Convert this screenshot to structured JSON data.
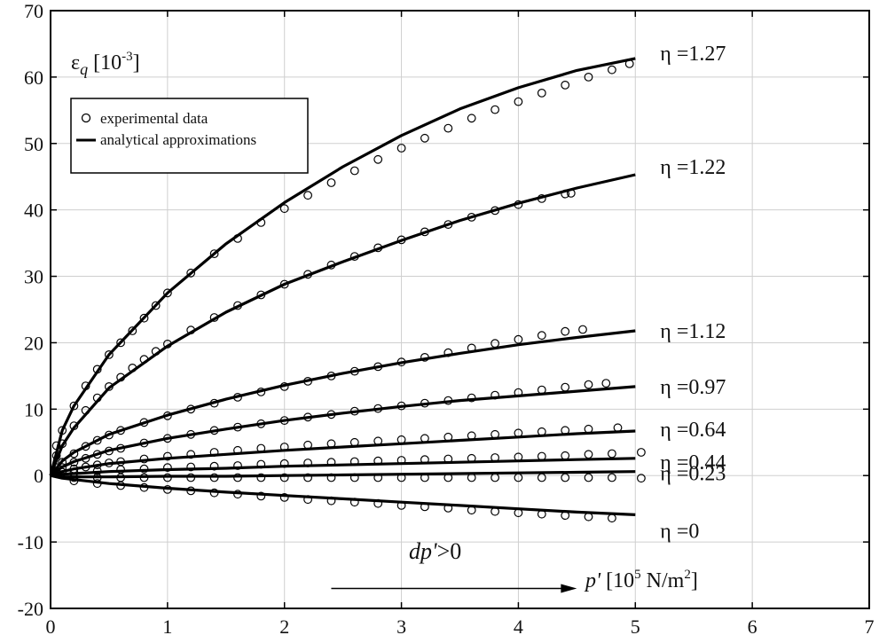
{
  "chart_data": {
    "type": "scatter",
    "title": "",
    "ylabel_parts": {
      "base": "ε",
      "sub": "q",
      "bracket_open": " [10",
      "sup": "-3",
      "bracket_close": "]"
    },
    "xlabel_parts": {
      "var": "p'",
      "bracket_open": " [10",
      "sup1": "5",
      "middle": " N/m",
      "sup2": "2",
      "bracket_close": "]"
    },
    "xlim": [
      0,
      7
    ],
    "ylim": [
      -20,
      70
    ],
    "xticks": [
      0,
      1,
      2,
      3,
      4,
      5,
      6,
      7
    ],
    "yticks": [
      -20,
      -10,
      0,
      10,
      20,
      30,
      40,
      50,
      60,
      70
    ],
    "grid": true,
    "legend": {
      "position": "upper-left",
      "entries": [
        {
          "marker": "circle",
          "label": "experimental data"
        },
        {
          "marker": "line",
          "label": "analytical approximations"
        }
      ]
    },
    "annotation": {
      "text_var": "dp'",
      "text_rest": ">0",
      "arrow_from_x": 2.4,
      "arrow_to_x": 4.5,
      "arrow_y": -17
    },
    "series": [
      {
        "label": "η =1.27",
        "approx": {
          "x": [
            0,
            0.1,
            0.2,
            0.5,
            1,
            1.5,
            2,
            2.5,
            3,
            3.5,
            4,
            4.5,
            5
          ],
          "y": [
            0,
            6.8,
            10.5,
            18.2,
            27.5,
            34.9,
            41.1,
            46.5,
            51.2,
            55.2,
            58.4,
            61.0,
            62.8
          ]
        },
        "experimental": {
          "x": [
            0.05,
            0.1,
            0.2,
            0.3,
            0.4,
            0.5,
            0.6,
            0.7,
            0.8,
            0.9,
            1,
            1.2,
            1.4,
            1.6,
            1.8,
            2,
            2.2,
            2.4,
            2.6,
            2.8,
            3,
            3.2,
            3.4,
            3.6,
            3.8,
            4,
            4.2,
            4.4,
            4.6,
            4.8,
            4.95
          ],
          "y": [
            4.5,
            6.8,
            10.5,
            13.5,
            16,
            18.2,
            20,
            21.8,
            23.7,
            25.6,
            27.5,
            30.5,
            33.4,
            35.7,
            38.1,
            40.2,
            42.2,
            44.1,
            45.9,
            47.6,
            49.3,
            50.8,
            52.3,
            53.8,
            55.1,
            56.3,
            57.6,
            58.8,
            60,
            61.1,
            62
          ]
        }
      },
      {
        "label": "η =1.22",
        "approx": {
          "x": [
            0,
            0.1,
            0.2,
            0.5,
            1,
            1.5,
            2,
            2.5,
            3,
            3.5,
            4,
            4.5,
            5
          ],
          "y": [
            0,
            4.5,
            7.2,
            13.2,
            19.5,
            24.6,
            28.8,
            32.2,
            35.4,
            38.4,
            41.0,
            43.3,
            45.3
          ]
        },
        "experimental": {
          "x": [
            0.05,
            0.1,
            0.2,
            0.3,
            0.4,
            0.5,
            0.6,
            0.7,
            0.8,
            0.9,
            1,
            1.2,
            1.4,
            1.6,
            1.8,
            2,
            2.2,
            2.4,
            2.6,
            2.8,
            3,
            3.2,
            3.4,
            3.6,
            3.8,
            4,
            4.2,
            4.4,
            4.45
          ],
          "y": [
            3,
            4.8,
            7.5,
            9.8,
            11.7,
            13.4,
            14.8,
            16.2,
            17.5,
            18.7,
            19.8,
            21.9,
            23.8,
            25.6,
            27.2,
            28.8,
            30.3,
            31.7,
            33,
            34.3,
            35.5,
            36.7,
            37.8,
            38.9,
            39.9,
            40.8,
            41.7,
            42.4,
            42.5
          ]
        }
      },
      {
        "label": "η =1.12",
        "approx": {
          "x": [
            0,
            0.1,
            0.2,
            0.5,
            1,
            1.5,
            2,
            2.5,
            3,
            3.5,
            4,
            4.5,
            5
          ],
          "y": [
            0,
            2.2,
            3.5,
            6.2,
            9.1,
            11.5,
            13.6,
            15.4,
            17.0,
            18.4,
            19.7,
            20.8,
            21.8
          ]
        },
        "experimental": {
          "x": [
            0.05,
            0.1,
            0.2,
            0.3,
            0.4,
            0.5,
            0.6,
            0.8,
            1,
            1.2,
            1.4,
            1.6,
            1.8,
            2,
            2.2,
            2.4,
            2.6,
            2.8,
            3,
            3.2,
            3.4,
            3.6,
            3.8,
            4,
            4.2,
            4.4,
            4.55
          ],
          "y": [
            1.2,
            2,
            3.3,
            4.4,
            5.3,
            6.1,
            6.8,
            8,
            9,
            10,
            10.9,
            11.8,
            12.6,
            13.4,
            14.2,
            15,
            15.7,
            16.4,
            17.1,
            17.8,
            18.5,
            19.2,
            19.9,
            20.5,
            21.1,
            21.7,
            22
          ]
        }
      },
      {
        "label": "η =0.97",
        "approx": {
          "x": [
            0,
            0.1,
            0.2,
            0.5,
            1,
            1.5,
            2,
            2.5,
            3,
            3.5,
            4,
            4.5,
            5
          ],
          "y": [
            0,
            1.3,
            2.1,
            3.8,
            5.6,
            7.0,
            8.3,
            9.4,
            10.4,
            11.3,
            12.0,
            12.7,
            13.4
          ]
        },
        "experimental": {
          "x": [
            0.05,
            0.1,
            0.2,
            0.3,
            0.4,
            0.5,
            0.6,
            0.8,
            1,
            1.2,
            1.4,
            1.6,
            1.8,
            2,
            2.2,
            2.4,
            2.6,
            2.8,
            3,
            3.2,
            3.4,
            3.6,
            3.8,
            4,
            4.2,
            4.4,
            4.6,
            4.75
          ],
          "y": [
            0.7,
            1.2,
            2,
            2.6,
            3.2,
            3.7,
            4.1,
            4.9,
            5.6,
            6.2,
            6.8,
            7.3,
            7.8,
            8.3,
            8.8,
            9.2,
            9.7,
            10.1,
            10.5,
            10.9,
            11.3,
            11.7,
            12.1,
            12.5,
            12.9,
            13.3,
            13.7,
            13.9
          ]
        }
      },
      {
        "label": "η =0.64",
        "approx": {
          "x": [
            0,
            0.1,
            0.2,
            0.5,
            1,
            1.5,
            2,
            2.5,
            3,
            3.5,
            4,
            4.5,
            5
          ],
          "y": [
            0,
            0.6,
            1.0,
            1.8,
            2.6,
            3.2,
            3.8,
            4.3,
            4.8,
            5.3,
            5.8,
            6.3,
            6.7
          ]
        },
        "experimental": {
          "x": [
            0.1,
            0.2,
            0.3,
            0.4,
            0.5,
            0.6,
            0.8,
            1,
            1.2,
            1.4,
            1.6,
            1.8,
            2,
            2.2,
            2.4,
            2.6,
            2.8,
            3,
            3.2,
            3.4,
            3.6,
            3.8,
            4,
            4.2,
            4.4,
            4.6,
            4.85
          ],
          "y": [
            0.5,
            1,
            1.3,
            1.6,
            1.9,
            2.1,
            2.5,
            2.9,
            3.2,
            3.5,
            3.8,
            4.1,
            4.3,
            4.6,
            4.8,
            5,
            5.2,
            5.4,
            5.6,
            5.8,
            6,
            6.2,
            6.4,
            6.6,
            6.8,
            7,
            7.2
          ]
        }
      },
      {
        "label": "η =0.44",
        "approx": {
          "x": [
            0,
            0.1,
            0.2,
            0.5,
            1,
            1.5,
            2,
            2.5,
            3,
            3.5,
            4,
            4.5,
            5
          ],
          "y": [
            0,
            0.2,
            0.3,
            0.6,
            0.9,
            1.1,
            1.4,
            1.6,
            1.8,
            2.0,
            2.2,
            2.4,
            2.6
          ]
        },
        "experimental": {
          "x": [
            0.2,
            0.4,
            0.6,
            0.8,
            1,
            1.2,
            1.4,
            1.6,
            1.8,
            2,
            2.2,
            2.4,
            2.6,
            2.8,
            3,
            3.2,
            3.4,
            3.6,
            3.8,
            4,
            4.2,
            4.4,
            4.6,
            4.8,
            5.05
          ],
          "y": [
            0.4,
            0.7,
            0.9,
            1,
            1.2,
            1.3,
            1.4,
            1.5,
            1.7,
            1.8,
            1.9,
            2,
            2.1,
            2.2,
            2.3,
            2.4,
            2.5,
            2.6,
            2.7,
            2.8,
            2.9,
            3,
            3.2,
            3.3,
            3.5
          ]
        }
      },
      {
        "label": "η =0.23",
        "approx": {
          "x": [
            0,
            0.1,
            0.2,
            0.5,
            1,
            1.5,
            2,
            2.5,
            3,
            3.5,
            4,
            4.5,
            5
          ],
          "y": [
            0,
            -0.2,
            -0.2,
            -0.2,
            -0.1,
            -0.1,
            0.0,
            0.1,
            0.2,
            0.3,
            0.4,
            0.5,
            0.6
          ]
        },
        "experimental": {
          "x": [
            0.2,
            0.4,
            0.6,
            0.8,
            1,
            1.2,
            1.4,
            1.6,
            1.8,
            2,
            2.2,
            2.4,
            2.6,
            2.8,
            3,
            3.2,
            3.4,
            3.6,
            3.8,
            4,
            4.2,
            4.4,
            4.6,
            4.8,
            5.05
          ],
          "y": [
            -0.3,
            -0.3,
            -0.3,
            -0.3,
            -0.3,
            -0.3,
            -0.3,
            -0.3,
            -0.3,
            -0.3,
            -0.3,
            -0.3,
            -0.3,
            -0.3,
            -0.3,
            -0.3,
            -0.3,
            -0.3,
            -0.3,
            -0.3,
            -0.3,
            -0.3,
            -0.3,
            -0.3,
            -0.4
          ]
        }
      },
      {
        "label": "η =0",
        "approx": {
          "x": [
            0,
            0.1,
            0.2,
            0.5,
            1,
            1.5,
            2,
            2.5,
            3,
            3.5,
            4,
            4.5,
            5
          ],
          "y": [
            0,
            -0.4,
            -0.6,
            -1.2,
            -1.9,
            -2.5,
            -3.0,
            -3.5,
            -4.0,
            -4.5,
            -5.0,
            -5.5,
            -5.9
          ]
        },
        "experimental": {
          "x": [
            0.2,
            0.4,
            0.6,
            0.8,
            1,
            1.2,
            1.4,
            1.6,
            1.8,
            2,
            2.2,
            2.4,
            2.6,
            2.8,
            3,
            3.2,
            3.4,
            3.6,
            3.8,
            4,
            4.2,
            4.4,
            4.6,
            4.8
          ],
          "y": [
            -0.8,
            -1.2,
            -1.5,
            -1.8,
            -2.1,
            -2.3,
            -2.6,
            -2.8,
            -3.1,
            -3.3,
            -3.6,
            -3.8,
            -4,
            -4.2,
            -4.5,
            -4.7,
            -4.9,
            -5.2,
            -5.4,
            -5.6,
            -5.8,
            -6,
            -6.2,
            -6.4
          ]
        }
      }
    ]
  }
}
